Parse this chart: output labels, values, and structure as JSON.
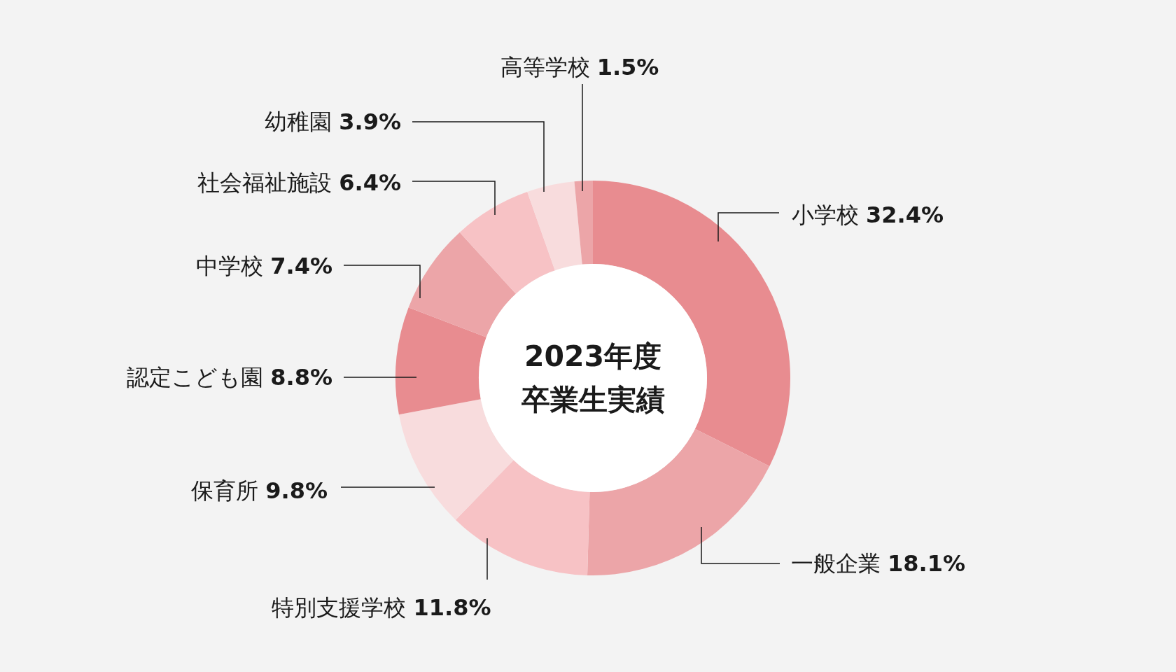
{
  "chart_data": {
    "type": "donut",
    "title": "2023年度",
    "subtitle": "卒業生実績",
    "categories": [
      "小学校",
      "一般企業",
      "特別支援学校",
      "保育所",
      "認定こども園",
      "中学校",
      "社会福祉施設",
      "幼稚園",
      "高等学校"
    ],
    "values": [
      32.4,
      18.1,
      11.8,
      9.8,
      8.8,
      7.4,
      6.4,
      3.9,
      1.5
    ],
    "value_labels": [
      "32.4%",
      "18.1%",
      "11.8%",
      "9.8%",
      "8.8%",
      "7.4%",
      "6.4%",
      "3.9%",
      "1.5%"
    ],
    "colors": [
      "#e88c90",
      "#eca5a8",
      "#f7c2c5",
      "#f8dcdd",
      "#e88c90",
      "#eca5a8",
      "#f7c2c5",
      "#f8dcdd",
      "#eca5a8"
    ]
  }
}
